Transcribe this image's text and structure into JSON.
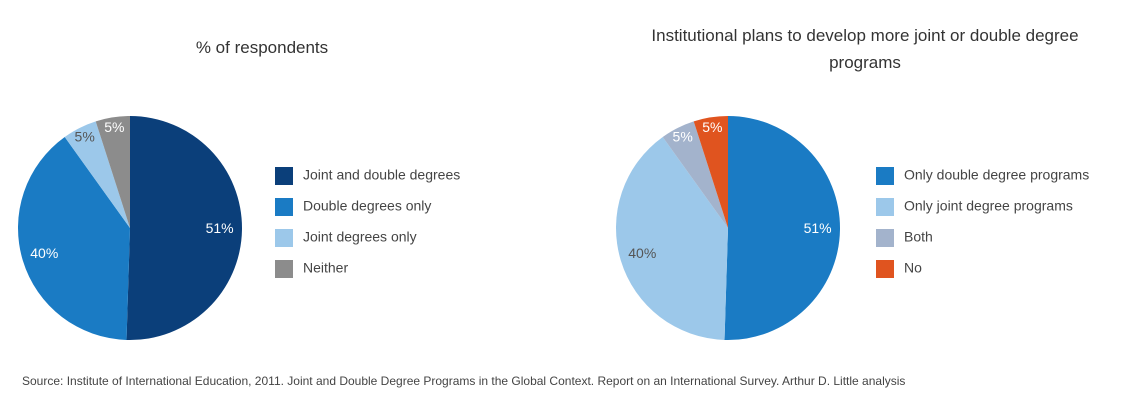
{
  "chart_data": [
    {
      "type": "pie",
      "title": "% of respondents",
      "categories": [
        "Joint and double degrees",
        "Double degrees only",
        "Joint degrees only",
        "Neither"
      ],
      "values": [
        51,
        40,
        5,
        5
      ],
      "value_labels": [
        "51%",
        "40%",
        "5%",
        "5%"
      ],
      "colors": [
        "#0b3f7a",
        "#1a7bc4",
        "#9cc8ea",
        "#8c8c8c"
      ]
    },
    {
      "type": "pie",
      "title": "Institutional plans to develop more joint or double degree programs",
      "categories": [
        "Only double degree programs",
        "Only joint degree programs",
        "Both",
        "No"
      ],
      "values": [
        51,
        40,
        5,
        5
      ],
      "value_labels": [
        "51%",
        "40%",
        "5%",
        "5%"
      ],
      "colors": [
        "#1a7bc4",
        "#9cc8ea",
        "#a3b3cc",
        "#e0541f"
      ]
    }
  ],
  "source": "Source:   Institute of International Education, 2011. Joint and Double Degree Programs in the Global Context. Report on an International Survey. Arthur D. Little analysis"
}
